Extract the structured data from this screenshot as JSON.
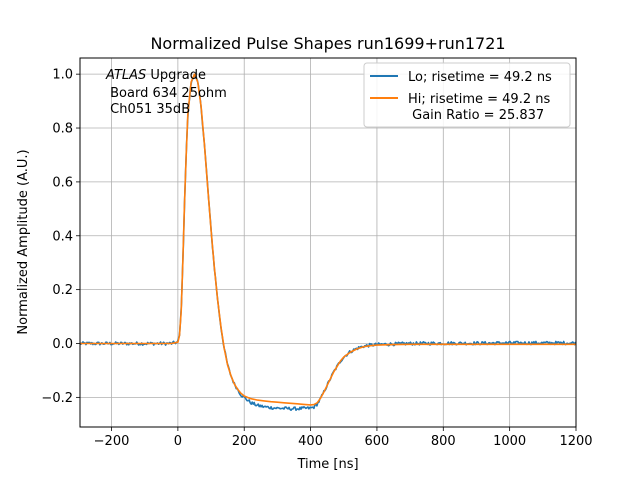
{
  "chart_data": {
    "type": "line",
    "title": "Normalized Pulse Shapes run1699+run1721",
    "xlabel": "Time [ns]",
    "ylabel": "Normalized Amplitude (A.U.)",
    "xlim": [
      -295,
      1200
    ],
    "ylim": [
      -0.31,
      1.06
    ],
    "xticks": [
      -200,
      0,
      200,
      400,
      600,
      800,
      1000,
      1200
    ],
    "xtick_labels": [
      "−200",
      "0",
      "200",
      "400",
      "600",
      "800",
      "1000",
      "1200"
    ],
    "yticks": [
      -0.2,
      0.0,
      0.2,
      0.4,
      0.6,
      0.8,
      1.0
    ],
    "ytick_labels": [
      "−0.2",
      "0.0",
      "0.2",
      "0.4",
      "0.6",
      "0.8",
      "1.0"
    ],
    "grid": true,
    "legend_position": "top-right",
    "annotation": {
      "line1_italic": "ATLAS",
      "line1_rest": " Upgrade",
      "line2": " Board 634 25ohm",
      "line3": " Ch051 35dB"
    },
    "series": [
      {
        "name": "Lo; risetime = 49.2 ns",
        "color": "#1f77b4",
        "noisy": true,
        "x": [
          -295,
          -100,
          -20,
          0,
          5,
          10,
          15,
          20,
          25,
          30,
          40,
          50,
          60,
          70,
          80,
          90,
          100,
          110,
          120,
          130,
          140,
          150,
          160,
          170,
          180,
          190,
          200,
          210,
          220,
          240,
          260,
          280,
          300,
          320,
          340,
          360,
          380,
          400,
          410,
          420,
          430,
          440,
          450,
          460,
          470,
          480,
          490,
          500,
          520,
          540,
          560,
          580,
          600,
          650,
          700,
          800,
          900,
          1000,
          1100,
          1200
        ],
        "y": [
          0.0,
          0.0,
          0.0,
          0.005,
          0.03,
          0.12,
          0.3,
          0.52,
          0.7,
          0.85,
          0.97,
          1.0,
          0.97,
          0.88,
          0.74,
          0.58,
          0.42,
          0.28,
          0.16,
          0.06,
          -0.02,
          -0.08,
          -0.12,
          -0.15,
          -0.17,
          -0.19,
          -0.2,
          -0.21,
          -0.22,
          -0.23,
          -0.235,
          -0.238,
          -0.24,
          -0.241,
          -0.242,
          -0.242,
          -0.241,
          -0.24,
          -0.236,
          -0.225,
          -0.205,
          -0.18,
          -0.155,
          -0.13,
          -0.105,
          -0.085,
          -0.065,
          -0.05,
          -0.03,
          -0.018,
          -0.01,
          -0.006,
          -0.004,
          -0.002,
          0.0,
          0.001,
          0.001,
          0.002,
          0.002,
          0.002
        ]
      },
      {
        "name": "Hi; risetime = 49.2 ns\n Gain Ratio = 25.837",
        "color": "#ff7f0e",
        "noisy": false,
        "x": [
          -295,
          -100,
          -20,
          0,
          5,
          10,
          15,
          20,
          25,
          30,
          40,
          50,
          60,
          70,
          80,
          90,
          100,
          110,
          120,
          130,
          140,
          150,
          160,
          170,
          180,
          190,
          200,
          210,
          220,
          240,
          260,
          280,
          300,
          320,
          340,
          360,
          380,
          400,
          410,
          420,
          430,
          440,
          450,
          460,
          470,
          480,
          490,
          500,
          520,
          540,
          560,
          580,
          600,
          650,
          700,
          800,
          900,
          1000,
          1100,
          1200
        ],
        "y": [
          0.0,
          0.0,
          0.0,
          0.005,
          0.03,
          0.12,
          0.3,
          0.52,
          0.7,
          0.85,
          0.97,
          1.0,
          0.97,
          0.88,
          0.74,
          0.58,
          0.42,
          0.28,
          0.16,
          0.06,
          -0.02,
          -0.08,
          -0.12,
          -0.15,
          -0.17,
          -0.185,
          -0.195,
          -0.2,
          -0.205,
          -0.21,
          -0.213,
          -0.216,
          -0.218,
          -0.22,
          -0.222,
          -0.224,
          -0.226,
          -0.228,
          -0.227,
          -0.22,
          -0.203,
          -0.18,
          -0.155,
          -0.13,
          -0.105,
          -0.085,
          -0.065,
          -0.05,
          -0.032,
          -0.02,
          -0.012,
          -0.008,
          -0.006,
          -0.004,
          -0.003,
          -0.003,
          -0.003,
          -0.003,
          -0.003,
          -0.003
        ]
      }
    ]
  }
}
